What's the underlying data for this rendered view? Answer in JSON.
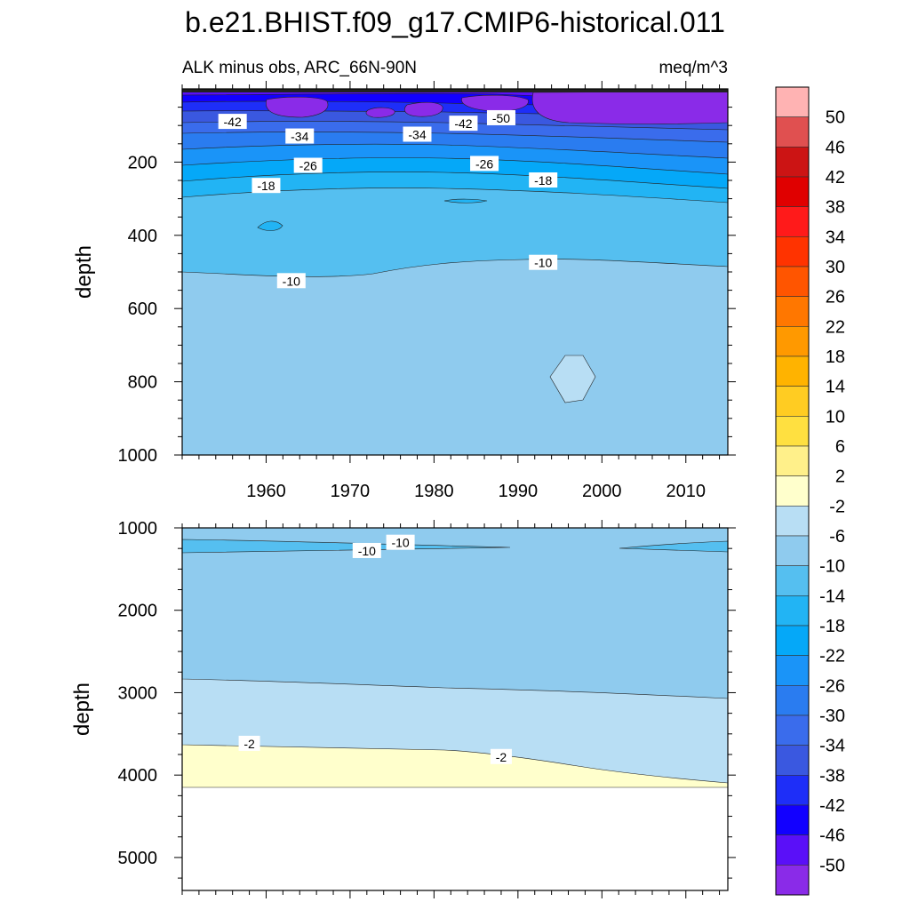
{
  "chart_data": {
    "type": "heatmap",
    "title": "b.e21.BHIST.f09_g17.CMIP6-historical.011",
    "subtitle_left": "ALK minus obs, ARC_66N-90N",
    "subtitle_right": "meq/m^3",
    "colorbar": {
      "levels": [
        50,
        46,
        42,
        38,
        34,
        30,
        26,
        22,
        18,
        14,
        10,
        6,
        2,
        -2,
        -6,
        -10,
        -14,
        -18,
        -22,
        -26,
        -30,
        -34,
        -38,
        -42,
        -46,
        -50
      ],
      "labels": [
        "50",
        "46",
        "42",
        "38",
        "34",
        "30",
        "26",
        "22",
        "18",
        "14",
        "10",
        "6",
        "2",
        "-2",
        "-6",
        "-10",
        "-14",
        "-18",
        "-22",
        "-26",
        "-30",
        "-34",
        "-38",
        "-42",
        "-46",
        "-50"
      ],
      "colors": [
        "#ffb3b3",
        "#e05050",
        "#cc1414",
        "#e00000",
        "#ff1a1a",
        "#ff3300",
        "#ff5500",
        "#ff7700",
        "#ff9900",
        "#ffb300",
        "#ffcc22",
        "#ffe040",
        "#fff08a",
        "#ffffcc",
        "#b8def4",
        "#8fcbee",
        "#55bff0",
        "#22b4f4",
        "#05a8f8",
        "#1a94f8",
        "#2a7cf0",
        "#3a6cec",
        "#3a58e0",
        "#1e2ef8",
        "#1200ff",
        "#5a10f8",
        "#8a2be8"
      ]
    },
    "panels": [
      {
        "name": "upper",
        "xlim": [
          1950,
          2015
        ],
        "ylim": [
          0,
          1000
        ],
        "ylabel": "depth",
        "xticks": [
          1960,
          1970,
          1980,
          1990,
          2000,
          2010
        ],
        "xtick_labels": [
          "1960",
          "1970",
          "1980",
          "1990",
          "2000",
          "2010"
        ],
        "yticks": [
          200,
          400,
          600,
          800,
          1000
        ],
        "ytick_labels": [
          "200",
          "400",
          "600",
          "800",
          "1000"
        ],
        "contour_labels": [
          {
            "text": "-42",
            "x": 1956,
            "y": 90
          },
          {
            "text": "-34",
            "x": 1964,
            "y": 130
          },
          {
            "text": "-34",
            "x": 1978,
            "y": 125
          },
          {
            "text": "-42",
            "x": 1983.5,
            "y": 95
          },
          {
            "text": "-50",
            "x": 1988,
            "y": 80
          },
          {
            "text": "-26",
            "x": 1965,
            "y": 210
          },
          {
            "text": "-26",
            "x": 1986,
            "y": 205
          },
          {
            "text": "-18",
            "x": 1960,
            "y": 265
          },
          {
            "text": "-18",
            "x": 1993,
            "y": 250
          },
          {
            "text": "-10",
            "x": 1963,
            "y": 525
          },
          {
            "text": "-10",
            "x": 1993,
            "y": 475
          }
        ]
      },
      {
        "name": "lower",
        "xlim": [
          1950,
          2015
        ],
        "ylim": [
          1000,
          5400
        ],
        "ylabel": "depth",
        "yticks": [
          1000,
          2000,
          3000,
          4000,
          5000
        ],
        "ytick_labels": [
          "1000",
          "2000",
          "3000",
          "4000",
          "5000"
        ],
        "contour_labels": [
          {
            "text": "-10",
            "x": 1976,
            "y": 1180
          },
          {
            "text": "-10",
            "x": 1972,
            "y": 1280
          },
          {
            "text": "-2",
            "x": 1958,
            "y": 3620
          },
          {
            "text": "-2",
            "x": 1988,
            "y": 3780
          }
        ]
      }
    ]
  }
}
